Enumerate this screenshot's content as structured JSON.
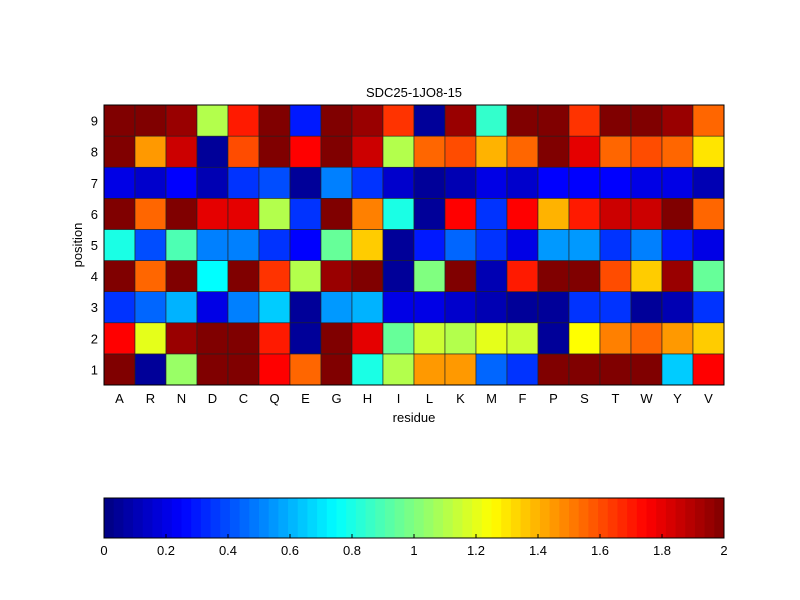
{
  "chart_data": {
    "type": "heatmap",
    "title": "SDC25-1JO8-15",
    "xlabel": "residue",
    "ylabel": "position",
    "x_categories": [
      "A",
      "R",
      "N",
      "D",
      "C",
      "Q",
      "E",
      "G",
      "H",
      "I",
      "L",
      "K",
      "M",
      "F",
      "P",
      "S",
      "T",
      "W",
      "Y",
      "V"
    ],
    "y_categories": [
      "1",
      "2",
      "3",
      "4",
      "5",
      "6",
      "7",
      "8",
      "9"
    ],
    "colormap": "jet",
    "clim": [
      0,
      2
    ],
    "colorbar": {
      "placement": "bottom",
      "ticks": [
        "0",
        "0.2",
        "0.4",
        "0.6",
        "0.8",
        "1",
        "1.2",
        "1.4",
        "1.6",
        "1.8",
        "2"
      ]
    },
    "values_by_position": [
      [
        2.0,
        0.05,
        1.05,
        2.0,
        2.0,
        1.75,
        1.55,
        2.0,
        0.8,
        1.1,
        1.45,
        1.45,
        0.45,
        0.35,
        2.0,
        2.0,
        2.0,
        2.0,
        0.65,
        1.75
      ],
      [
        1.75,
        1.2,
        1.95,
        2.0,
        2.0,
        1.7,
        0.05,
        2.0,
        1.8,
        0.95,
        1.15,
        1.1,
        1.2,
        1.15,
        0.05,
        1.25,
        1.5,
        1.55,
        1.45,
        1.35
      ],
      [
        0.35,
        0.45,
        0.6,
        0.2,
        0.5,
        0.65,
        0.05,
        0.55,
        0.6,
        0.2,
        0.2,
        0.15,
        0.1,
        0.05,
        0.05,
        0.35,
        0.35,
        0.05,
        0.1,
        0.35
      ],
      [
        2.0,
        1.55,
        2.0,
        0.75,
        2.0,
        1.65,
        1.1,
        1.95,
        2.0,
        0.05,
        1.0,
        2.0,
        0.1,
        1.7,
        2.0,
        2.0,
        1.6,
        1.35,
        1.95,
        0.95
      ],
      [
        0.8,
        0.4,
        0.9,
        0.5,
        0.5,
        0.35,
        0.25,
        0.95,
        1.35,
        0.05,
        0.3,
        0.45,
        0.35,
        0.2,
        0.55,
        0.55,
        0.35,
        0.5,
        0.3,
        0.2
      ],
      [
        2.0,
        1.55,
        2.0,
        1.8,
        1.8,
        1.1,
        0.35,
        2.0,
        1.5,
        0.8,
        0.05,
        1.75,
        0.35,
        1.75,
        1.4,
        1.7,
        1.85,
        1.85,
        2.0,
        1.55
      ],
      [
        0.2,
        0.15,
        0.25,
        0.1,
        0.35,
        0.4,
        0.05,
        0.5,
        0.35,
        0.15,
        0.05,
        0.1,
        0.2,
        0.15,
        0.25,
        0.25,
        0.25,
        0.2,
        0.2,
        0.1
      ],
      [
        2.0,
        1.45,
        1.85,
        0.05,
        1.6,
        2.0,
        1.75,
        2.0,
        1.85,
        1.1,
        1.55,
        1.6,
        1.4,
        1.55,
        2.0,
        1.8,
        1.55,
        1.6,
        1.55,
        1.3
      ],
      [
        2.0,
        2.0,
        1.95,
        1.1,
        1.7,
        2.0,
        0.3,
        2.0,
        1.95,
        1.65,
        0.05,
        1.95,
        0.85,
        2.0,
        2.0,
        1.65,
        2.0,
        2.0,
        1.95,
        1.55
      ]
    ]
  }
}
